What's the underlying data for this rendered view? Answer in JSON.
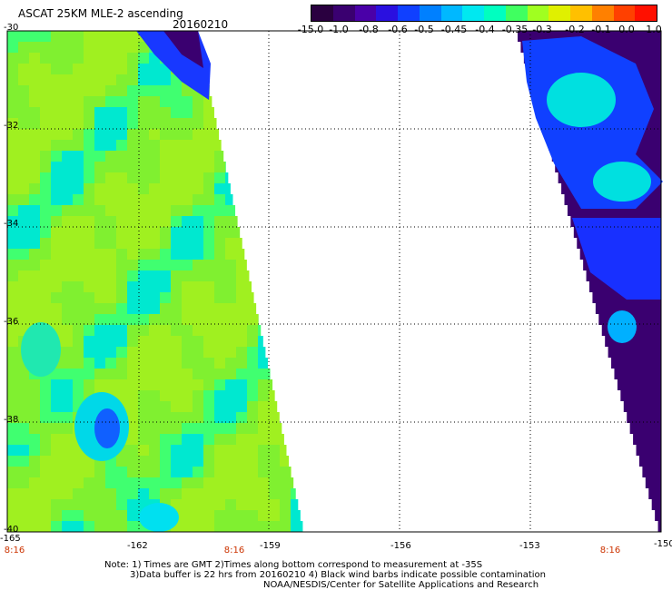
{
  "header": {
    "title": "ASCAT 25KM MLE-2 ascending",
    "date": "20160210"
  },
  "colorbar": {
    "labels": [
      "-15.0",
      "-1.0",
      "-0.8",
      "-0.6",
      "-0.5",
      "-0.45",
      "-0.4",
      "-0.35",
      "-0.3",
      "-0.2",
      "-0.1",
      "0.0",
      "1.0"
    ],
    "colors": [
      "#2a0040",
      "#3a0070",
      "#4a00a8",
      "#2a10e0",
      "#1040ff",
      "#0080ff",
      "#00b8ff",
      "#00e8f0",
      "#00ffc0",
      "#40ff60",
      "#a0ff20",
      "#e0f000",
      "#ffc000",
      "#ff8000",
      "#ff4000",
      "#ff1000"
    ]
  },
  "map": {
    "lat_labels": [
      "-30",
      "-32",
      "-34",
      "-36",
      "-38",
      "-40"
    ],
    "lon_labels": [
      "-165",
      "-162",
      "-159",
      "-156",
      "-153",
      "-150"
    ],
    "time_labels": [
      "8:16",
      "8:16",
      "8:16"
    ]
  },
  "notes": {
    "line1": "Note: 1) Times are GMT 2)Times along bottom correspond to measurement at -35S",
    "line2": "3)Data buffer is 22 hrs from 20160210 4) Black wind barbs indicate possible contamination",
    "line3": "NOAA/NESDIS/Center for Satellite Applications and Research"
  }
}
